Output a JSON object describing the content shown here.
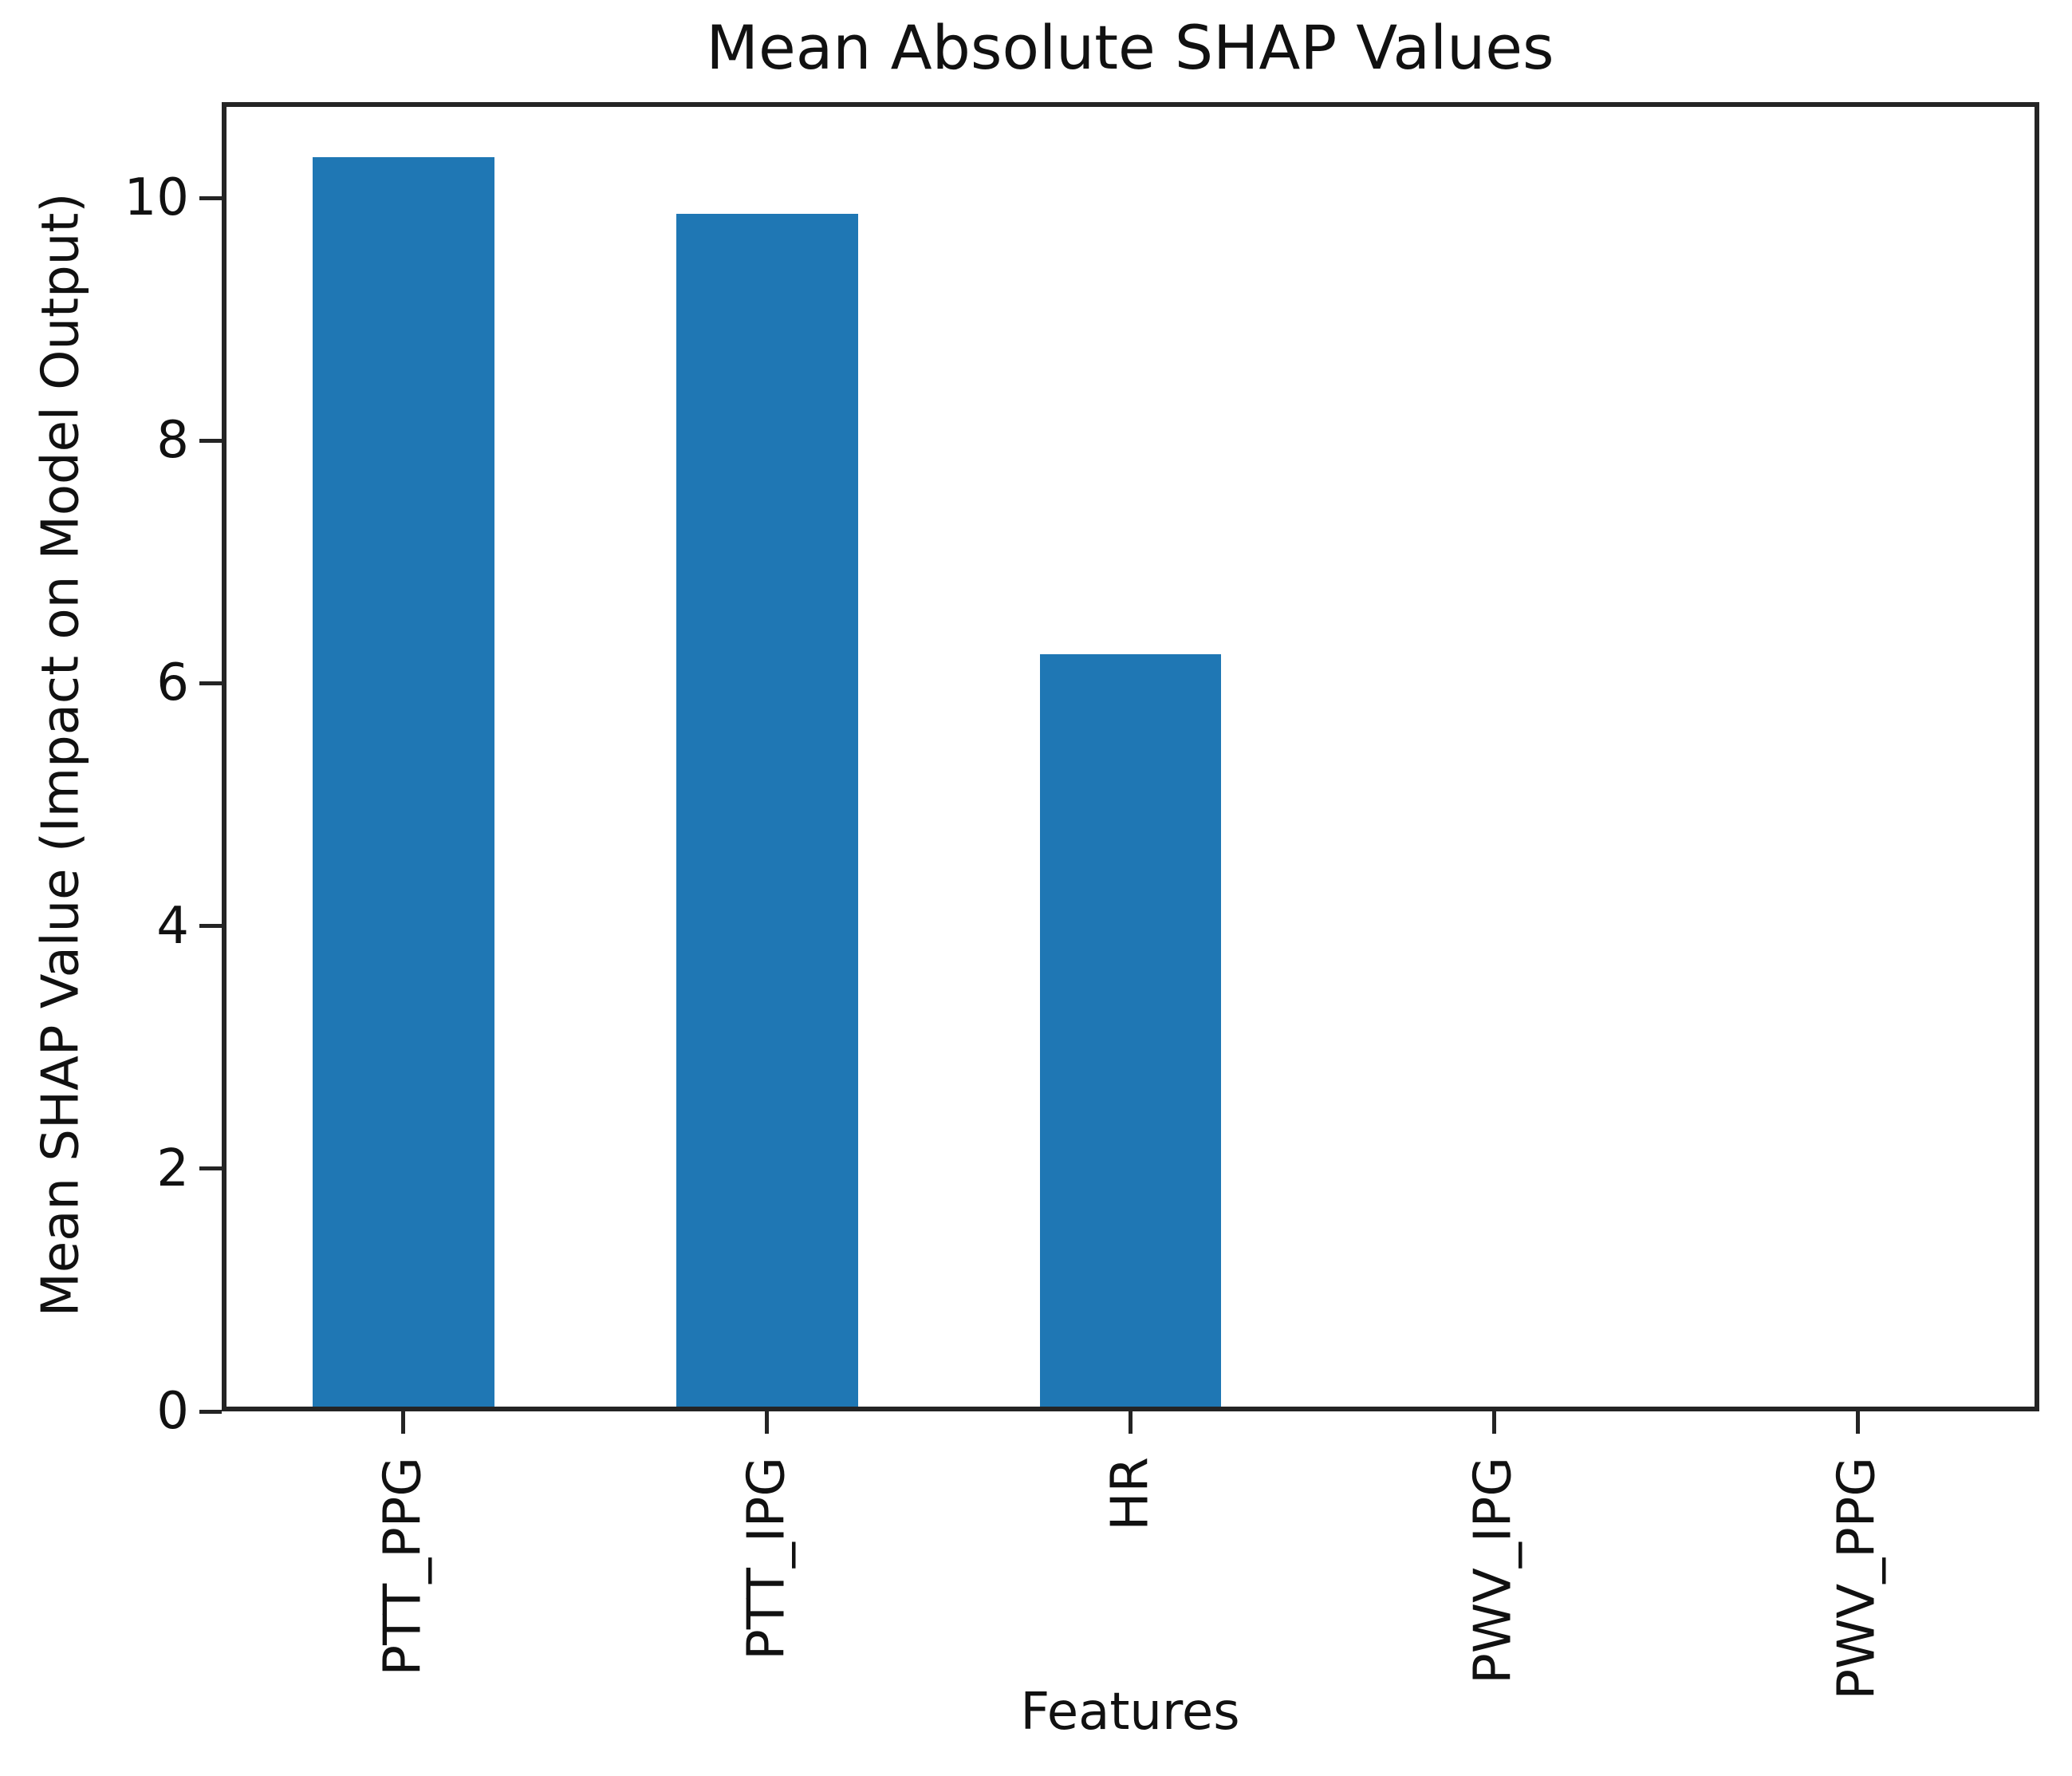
{
  "figure": {
    "background": "#ffffff",
    "text_color": "#111111",
    "spine_color": "#242424"
  },
  "chart_data": {
    "type": "bar",
    "title": "Mean Absolute SHAP Values",
    "xlabel": "Features",
    "ylabel": "Mean SHAP Value (Impact on Model Output)",
    "categories": [
      "PTT_PPG",
      "PTT_IPG",
      "HR",
      "PWV_IPG",
      "PWV_PPG"
    ],
    "values": [
      10.3,
      9.83,
      6.2,
      0.0,
      0.0
    ],
    "bar_color": "#1f77b4",
    "bar_width_fraction": 0.5,
    "ylim": [
      0,
      10.79
    ],
    "yticks": [
      0,
      2,
      4,
      6,
      8,
      10
    ],
    "x_tick_rotation_deg": 90,
    "grid": false,
    "legend": null
  }
}
